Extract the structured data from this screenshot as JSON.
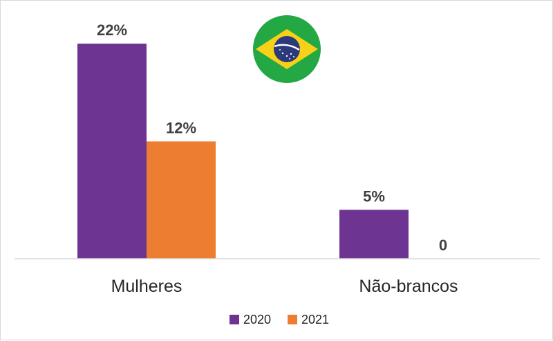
{
  "chart_data": {
    "type": "bar",
    "title": "",
    "xlabel": "",
    "ylabel": "",
    "categories": [
      "Mulheres",
      "Não-brancos"
    ],
    "series": [
      {
        "name": "2020",
        "values": [
          22,
          5
        ],
        "labels": [
          "22%",
          "5%"
        ],
        "color": "#6E3491"
      },
      {
        "name": "2021",
        "values": [
          12,
          0
        ],
        "labels": [
          "12%",
          "0"
        ],
        "color": "#ED7D31"
      }
    ],
    "ylim": [
      0,
      23
    ],
    "grid": false,
    "legend": "bottom",
    "unit": "%"
  },
  "flag": {
    "icon": "brazil-flag-icon",
    "green": "#23A844",
    "yellow": "#F7D117",
    "blue": "#2A3A7A"
  }
}
